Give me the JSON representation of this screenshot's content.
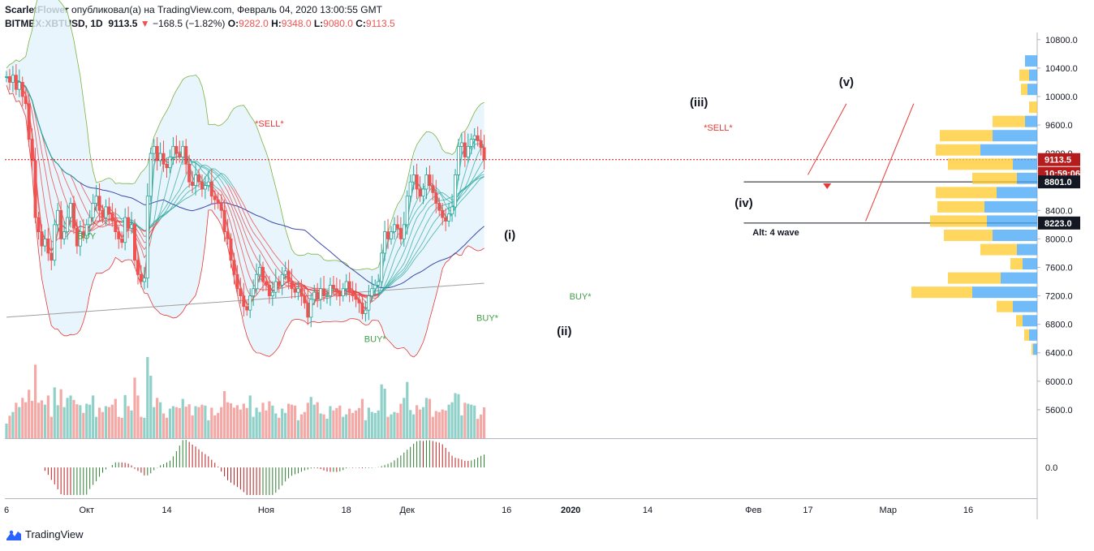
{
  "header": {
    "author": "ScarletFlower",
    "published": "опубликовал(а) на TradingView.com, Февраль 04, 2020 13:00:55 GMT",
    "symbol": "BITMEX:XBTUSD, 1D",
    "last": "9113.5",
    "change": "−168.5 (−1.82%)",
    "open_label": "O:",
    "open": "9282.0",
    "high_label": "H:",
    "high": "9348.0",
    "low_label": "L:",
    "low": "9080.0",
    "close_label": "C:",
    "close": "9113.5"
  },
  "brand": {
    "name": "TradingView"
  },
  "chart_data": {
    "type": "candlestick",
    "symbol": "BITMEX:XBTUSD",
    "interval": "1D",
    "y_axis": {
      "range": [
        5200,
        10900
      ],
      "ticks": [
        "10800.0",
        "10400.0",
        "10000.0",
        "9600.0",
        "9200.0",
        "8800.0",
        "8400.0",
        "8000.0",
        "7600.0",
        "7200.0",
        "6800.0",
        "6400.0",
        "6000.0",
        "5600.0"
      ],
      "tick_values": [
        10800,
        10400,
        10000,
        9600,
        9200,
        8800,
        8400,
        8000,
        7600,
        7200,
        6800,
        6400,
        6000,
        5600
      ]
    },
    "oscillator_axis": {
      "ticks": [
        "0.0"
      ]
    },
    "x_axis": {
      "ticks": [
        "6",
        "Окт",
        "14",
        "Ноя",
        "18",
        "Дек",
        "16",
        "2020",
        "14",
        "Фев",
        "17",
        "Мар",
        "16"
      ],
      "tick_days": [
        0,
        25,
        50,
        81,
        106,
        125,
        156,
        176,
        200,
        233,
        250,
        275,
        300
      ]
    },
    "price_labels": [
      {
        "text": "9113.5",
        "value": 9113.5,
        "color": "#b71c1c"
      },
      {
        "text": "10:59:06",
        "value": 8920,
        "color": "#b71c1c"
      },
      {
        "text": "8801.0",
        "value": 8801,
        "color": "#131722"
      },
      {
        "text": "8223.0",
        "value": 8223,
        "color": "#131722"
      }
    ],
    "annotations": [
      {
        "text": "(i)",
        "day": 157,
        "value": 8000
      },
      {
        "text": "(ii)",
        "day": 174,
        "value": 6650
      },
      {
        "text": "(iii)",
        "day": 216,
        "value": 9860
      },
      {
        "text": "(iv)",
        "day": 230,
        "value": 8450
      },
      {
        "text": "(v)",
        "day": 262,
        "value": 10150
      },
      {
        "text": "Alt: 4 wave",
        "day": 240,
        "value": 8050
      },
      {
        "text": "BUY",
        "day": 25,
        "value": 8000
      },
      {
        "text": "BUY*",
        "day": 115,
        "value": 6550
      },
      {
        "text": "BUY*",
        "day": 150,
        "value": 6850
      },
      {
        "text": "BUY*",
        "day": 179,
        "value": 7150
      },
      {
        "text": "*SELL*",
        "day": 82,
        "value": 9580
      },
      {
        "text": "*SELL*",
        "day": 222,
        "value": 9520
      }
    ],
    "closes": [
      10280,
      10200,
      10300,
      10100,
      10200,
      10000,
      9900,
      9400,
      9100,
      8300,
      8100,
      7900,
      8000,
      7800,
      7700,
      8200,
      8400,
      8000,
      8100,
      8300,
      8500,
      8150,
      7900,
      8100,
      8050,
      8200,
      8300,
      8500,
      8600,
      8400,
      8300,
      8450,
      8350,
      8250,
      8100,
      8000,
      7950,
      8300,
      8150,
      8200,
      7700,
      7500,
      7400,
      7450,
      8600,
      9200,
      9300,
      9100,
      9200,
      9050,
      9000,
      9150,
      9300,
      9200,
      9150,
      9300,
      9050,
      8800,
      8750,
      8900,
      8800,
      8700,
      8750,
      8800,
      8600,
      8550,
      8500,
      8400,
      8100,
      8000,
      7700,
      7500,
      7300,
      7200,
      7050,
      7000,
      7200,
      7300,
      7500,
      7600,
      7400,
      7350,
      7200,
      7250,
      7400,
      7350,
      7500,
      7550,
      7400,
      7300,
      7250,
      7300,
      7200,
      7100,
      6900,
      7150,
      7250,
      7150,
      7300,
      7200,
      7200,
      7350,
      7300,
      7250,
      7200,
      7300,
      7400,
      7250,
      7200,
      7150,
      7100,
      6950,
      7000,
      7200,
      7300,
      7350,
      7400,
      7800,
      8100,
      8000,
      8100,
      8200,
      8150,
      8000,
      8200,
      8600,
      8800,
      8900,
      8700,
      8600,
      8700,
      8900,
      8750,
      8650,
      8500,
      8400,
      8300,
      8250,
      8350,
      8450,
      8900,
      9300,
      9350,
      9150,
      9300,
      9400,
      9450,
      9380,
      9282,
      9113.5
    ],
    "volume_range": [
      0,
      1
    ],
    "colors": {
      "up": "#26a69a",
      "down": "#ef5350",
      "vol_up": "#8fd1c9",
      "vol_down": "#f4a9a6",
      "ribbon_red": "#e53935",
      "ribbon_green": "#26a69a",
      "bands_fill": "#e3f2fd",
      "bands_line": "#7cb342",
      "profile_up": "#42a5f5",
      "profile_down": "#ffca28"
    }
  }
}
